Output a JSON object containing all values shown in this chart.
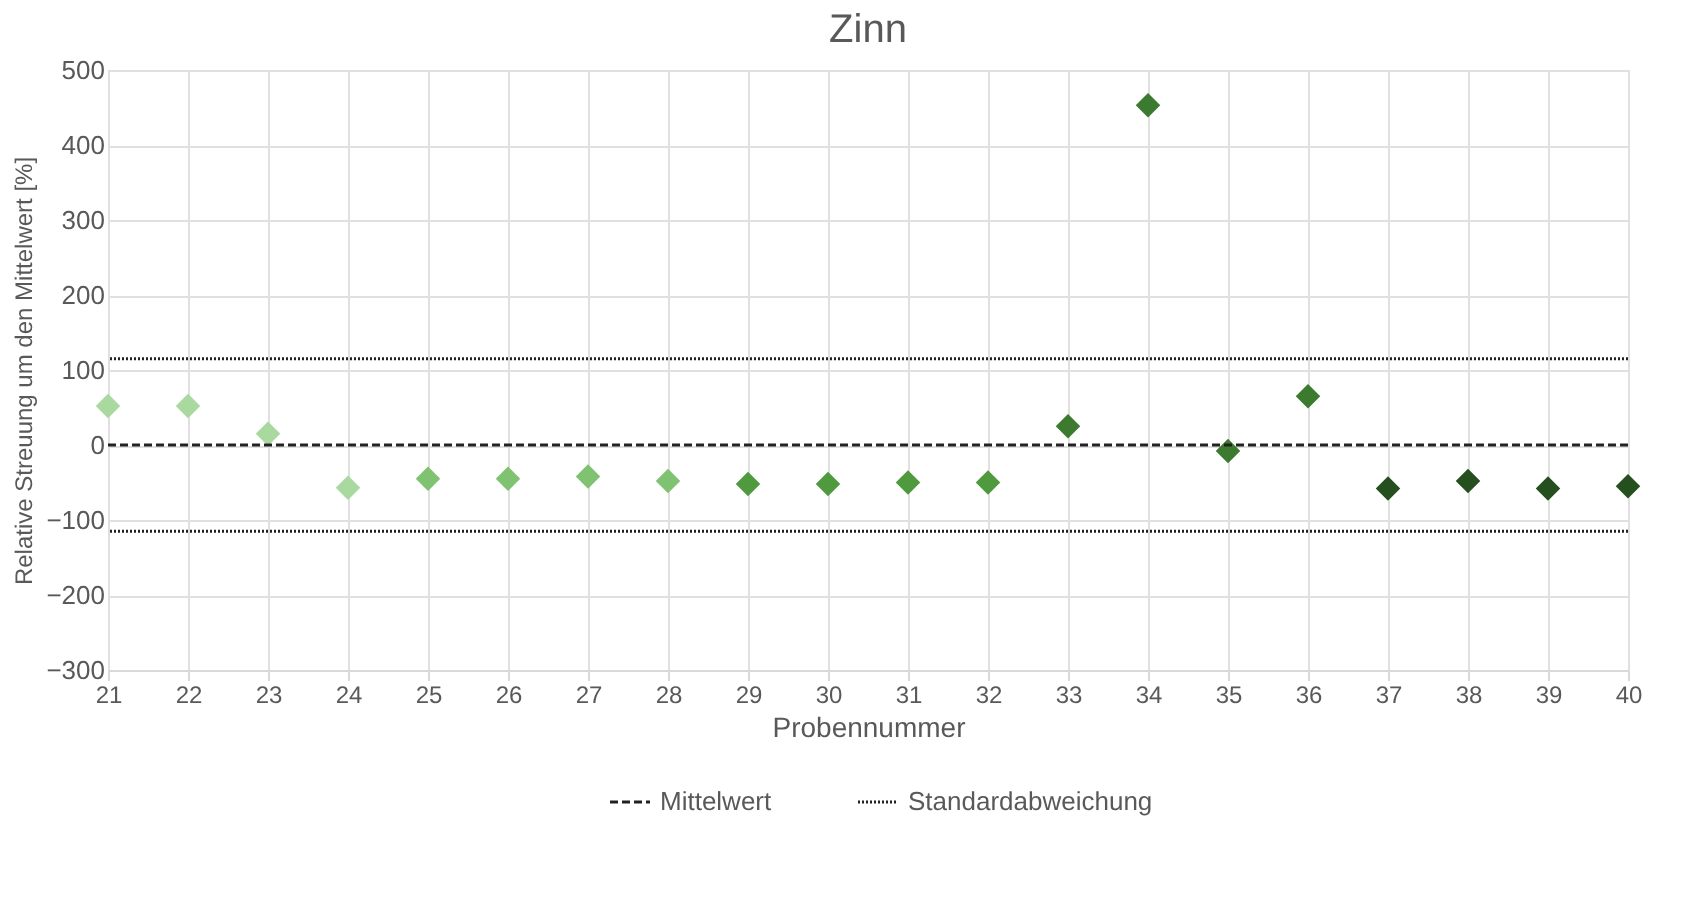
{
  "chart_data": {
    "type": "scatter",
    "title": "Zinn",
    "xlabel": "Probennummer",
    "ylabel": "Relative Streuung um den Mittelwert [%]",
    "categories": [
      "21",
      "22",
      "23",
      "24",
      "25",
      "26",
      "27",
      "28",
      "29",
      "30",
      "31",
      "32",
      "33",
      "34",
      "35",
      "36",
      "37",
      "38",
      "39",
      "40"
    ],
    "series": [
      {
        "color": "#a9d99f",
        "values": [
          52,
          52,
          15,
          -57,
          null,
          null,
          null,
          null,
          null,
          null,
          null,
          null,
          null,
          null,
          null,
          null,
          null,
          null,
          null,
          null
        ]
      },
      {
        "color": "#7fc272",
        "values": [
          null,
          null,
          null,
          null,
          -45,
          -45,
          -42,
          -48,
          null,
          null,
          null,
          null,
          null,
          null,
          null,
          null,
          null,
          null,
          null,
          null
        ]
      },
      {
        "color": "#4f9a3f",
        "values": [
          null,
          null,
          null,
          null,
          null,
          null,
          null,
          null,
          -52,
          -52,
          -50,
          -50,
          null,
          null,
          null,
          null,
          null,
          null,
          null,
          null
        ]
      },
      {
        "color": "#3b7a2f",
        "values": [
          null,
          null,
          null,
          null,
          null,
          null,
          null,
          null,
          null,
          null,
          null,
          null,
          25,
          453,
          -8,
          65,
          null,
          null,
          null,
          null
        ]
      },
      {
        "color": "#264f1f",
        "values": [
          null,
          null,
          null,
          null,
          null,
          null,
          null,
          null,
          null,
          null,
          null,
          null,
          null,
          null,
          null,
          null,
          -58,
          -48,
          -58,
          -55
        ]
      }
    ],
    "marker": "diamond",
    "ylim": [
      -300,
      500
    ],
    "yticks": [
      -300,
      -200,
      -100,
      0,
      100,
      200,
      300,
      400,
      500
    ],
    "grid": true,
    "legend": "bottom",
    "ref_lines": [
      {
        "axis": "y",
        "value": 0,
        "label": "Mittelwert",
        "color": "#222222",
        "line_style": "dashed"
      },
      {
        "axis": "y",
        "value": 115,
        "label": "Standardabweichung",
        "color": "#222222",
        "line_style": "dotted"
      },
      {
        "axis": "y",
        "value": -115,
        "label": null,
        "color": "#222222",
        "line_style": "dotted"
      }
    ]
  }
}
